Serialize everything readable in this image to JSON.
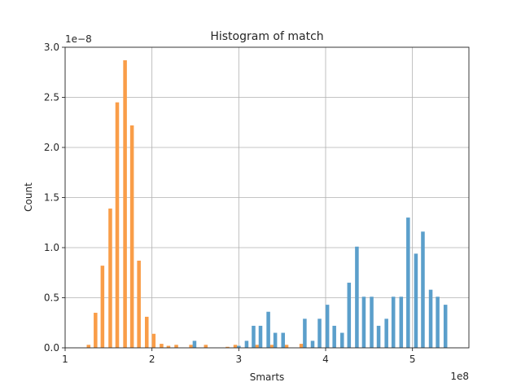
{
  "chart_data": {
    "type": "bar",
    "title": "Histogram of match",
    "xlabel": "Smarts",
    "ylabel": "Count",
    "x_offset_text": "1e8",
    "y_offset_text": "1e−8",
    "xlim": [
      1.0,
      5.65
    ],
    "ylim": [
      0,
      3.0
    ],
    "x_scale": 100000000.0,
    "y_scale": 1e-08,
    "x_ticks": [
      1,
      2,
      3,
      4,
      5
    ],
    "x_tick_labels": [
      "1",
      "2",
      "3",
      "4",
      "5"
    ],
    "y_ticks": [
      0.0,
      0.5,
      1.0,
      1.5,
      2.0,
      2.5,
      3.0
    ],
    "y_tick_labels": [
      "0.0",
      "0.5",
      "1.0",
      "1.5",
      "2.0",
      "2.5",
      "3.0"
    ],
    "grid": true,
    "colors": {
      "series_blue": "#5b9fcb",
      "series_orange": "#f99d48"
    },
    "series": [
      {
        "color": "#f99d48",
        "bins": [
          {
            "x": 1.27,
            "y": 0.03
          },
          {
            "x": 1.35,
            "y": 0.35
          },
          {
            "x": 1.43,
            "y": 0.82
          },
          {
            "x": 1.52,
            "y": 1.39
          },
          {
            "x": 1.6,
            "y": 2.45
          },
          {
            "x": 1.69,
            "y": 2.87
          },
          {
            "x": 1.77,
            "y": 2.22
          },
          {
            "x": 1.85,
            "y": 0.87
          },
          {
            "x": 1.94,
            "y": 0.31
          },
          {
            "x": 2.02,
            "y": 0.14
          },
          {
            "x": 2.11,
            "y": 0.04
          },
          {
            "x": 2.19,
            "y": 0.02
          },
          {
            "x": 2.28,
            "y": 0.03
          },
          {
            "x": 2.45,
            "y": 0.03
          },
          {
            "x": 2.62,
            "y": 0.03
          },
          {
            "x": 2.87,
            "y": 0.01
          },
          {
            "x": 2.96,
            "y": 0.03
          },
          {
            "x": 3.21,
            "y": 0.03
          },
          {
            "x": 3.38,
            "y": 0.03
          },
          {
            "x": 3.55,
            "y": 0.03
          },
          {
            "x": 3.72,
            "y": 0.04
          }
        ]
      },
      {
        "color": "#5b9fcb",
        "bins": [
          {
            "x": 2.49,
            "y": 0.07
          },
          {
            "x": 3.0,
            "y": 0.02
          },
          {
            "x": 3.09,
            "y": 0.07
          },
          {
            "x": 3.17,
            "y": 0.22
          },
          {
            "x": 3.25,
            "y": 0.22
          },
          {
            "x": 3.34,
            "y": 0.36
          },
          {
            "x": 3.42,
            "y": 0.15
          },
          {
            "x": 3.51,
            "y": 0.15
          },
          {
            "x": 3.76,
            "y": 0.29
          },
          {
            "x": 3.85,
            "y": 0.07
          },
          {
            "x": 3.93,
            "y": 0.29
          },
          {
            "x": 4.02,
            "y": 0.43
          },
          {
            "x": 4.1,
            "y": 0.22
          },
          {
            "x": 4.19,
            "y": 0.15
          },
          {
            "x": 4.27,
            "y": 0.65
          },
          {
            "x": 4.36,
            "y": 1.01
          },
          {
            "x": 4.44,
            "y": 0.51
          },
          {
            "x": 4.53,
            "y": 0.51
          },
          {
            "x": 4.61,
            "y": 0.22
          },
          {
            "x": 4.7,
            "y": 0.29
          },
          {
            "x": 4.78,
            "y": 0.51
          },
          {
            "x": 4.87,
            "y": 0.51
          },
          {
            "x": 4.95,
            "y": 1.3
          },
          {
            "x": 5.04,
            "y": 0.94
          },
          {
            "x": 5.12,
            "y": 1.16
          },
          {
            "x": 5.21,
            "y": 0.58
          },
          {
            "x": 5.29,
            "y": 0.51
          },
          {
            "x": 5.38,
            "y": 0.43
          }
        ]
      }
    ]
  }
}
